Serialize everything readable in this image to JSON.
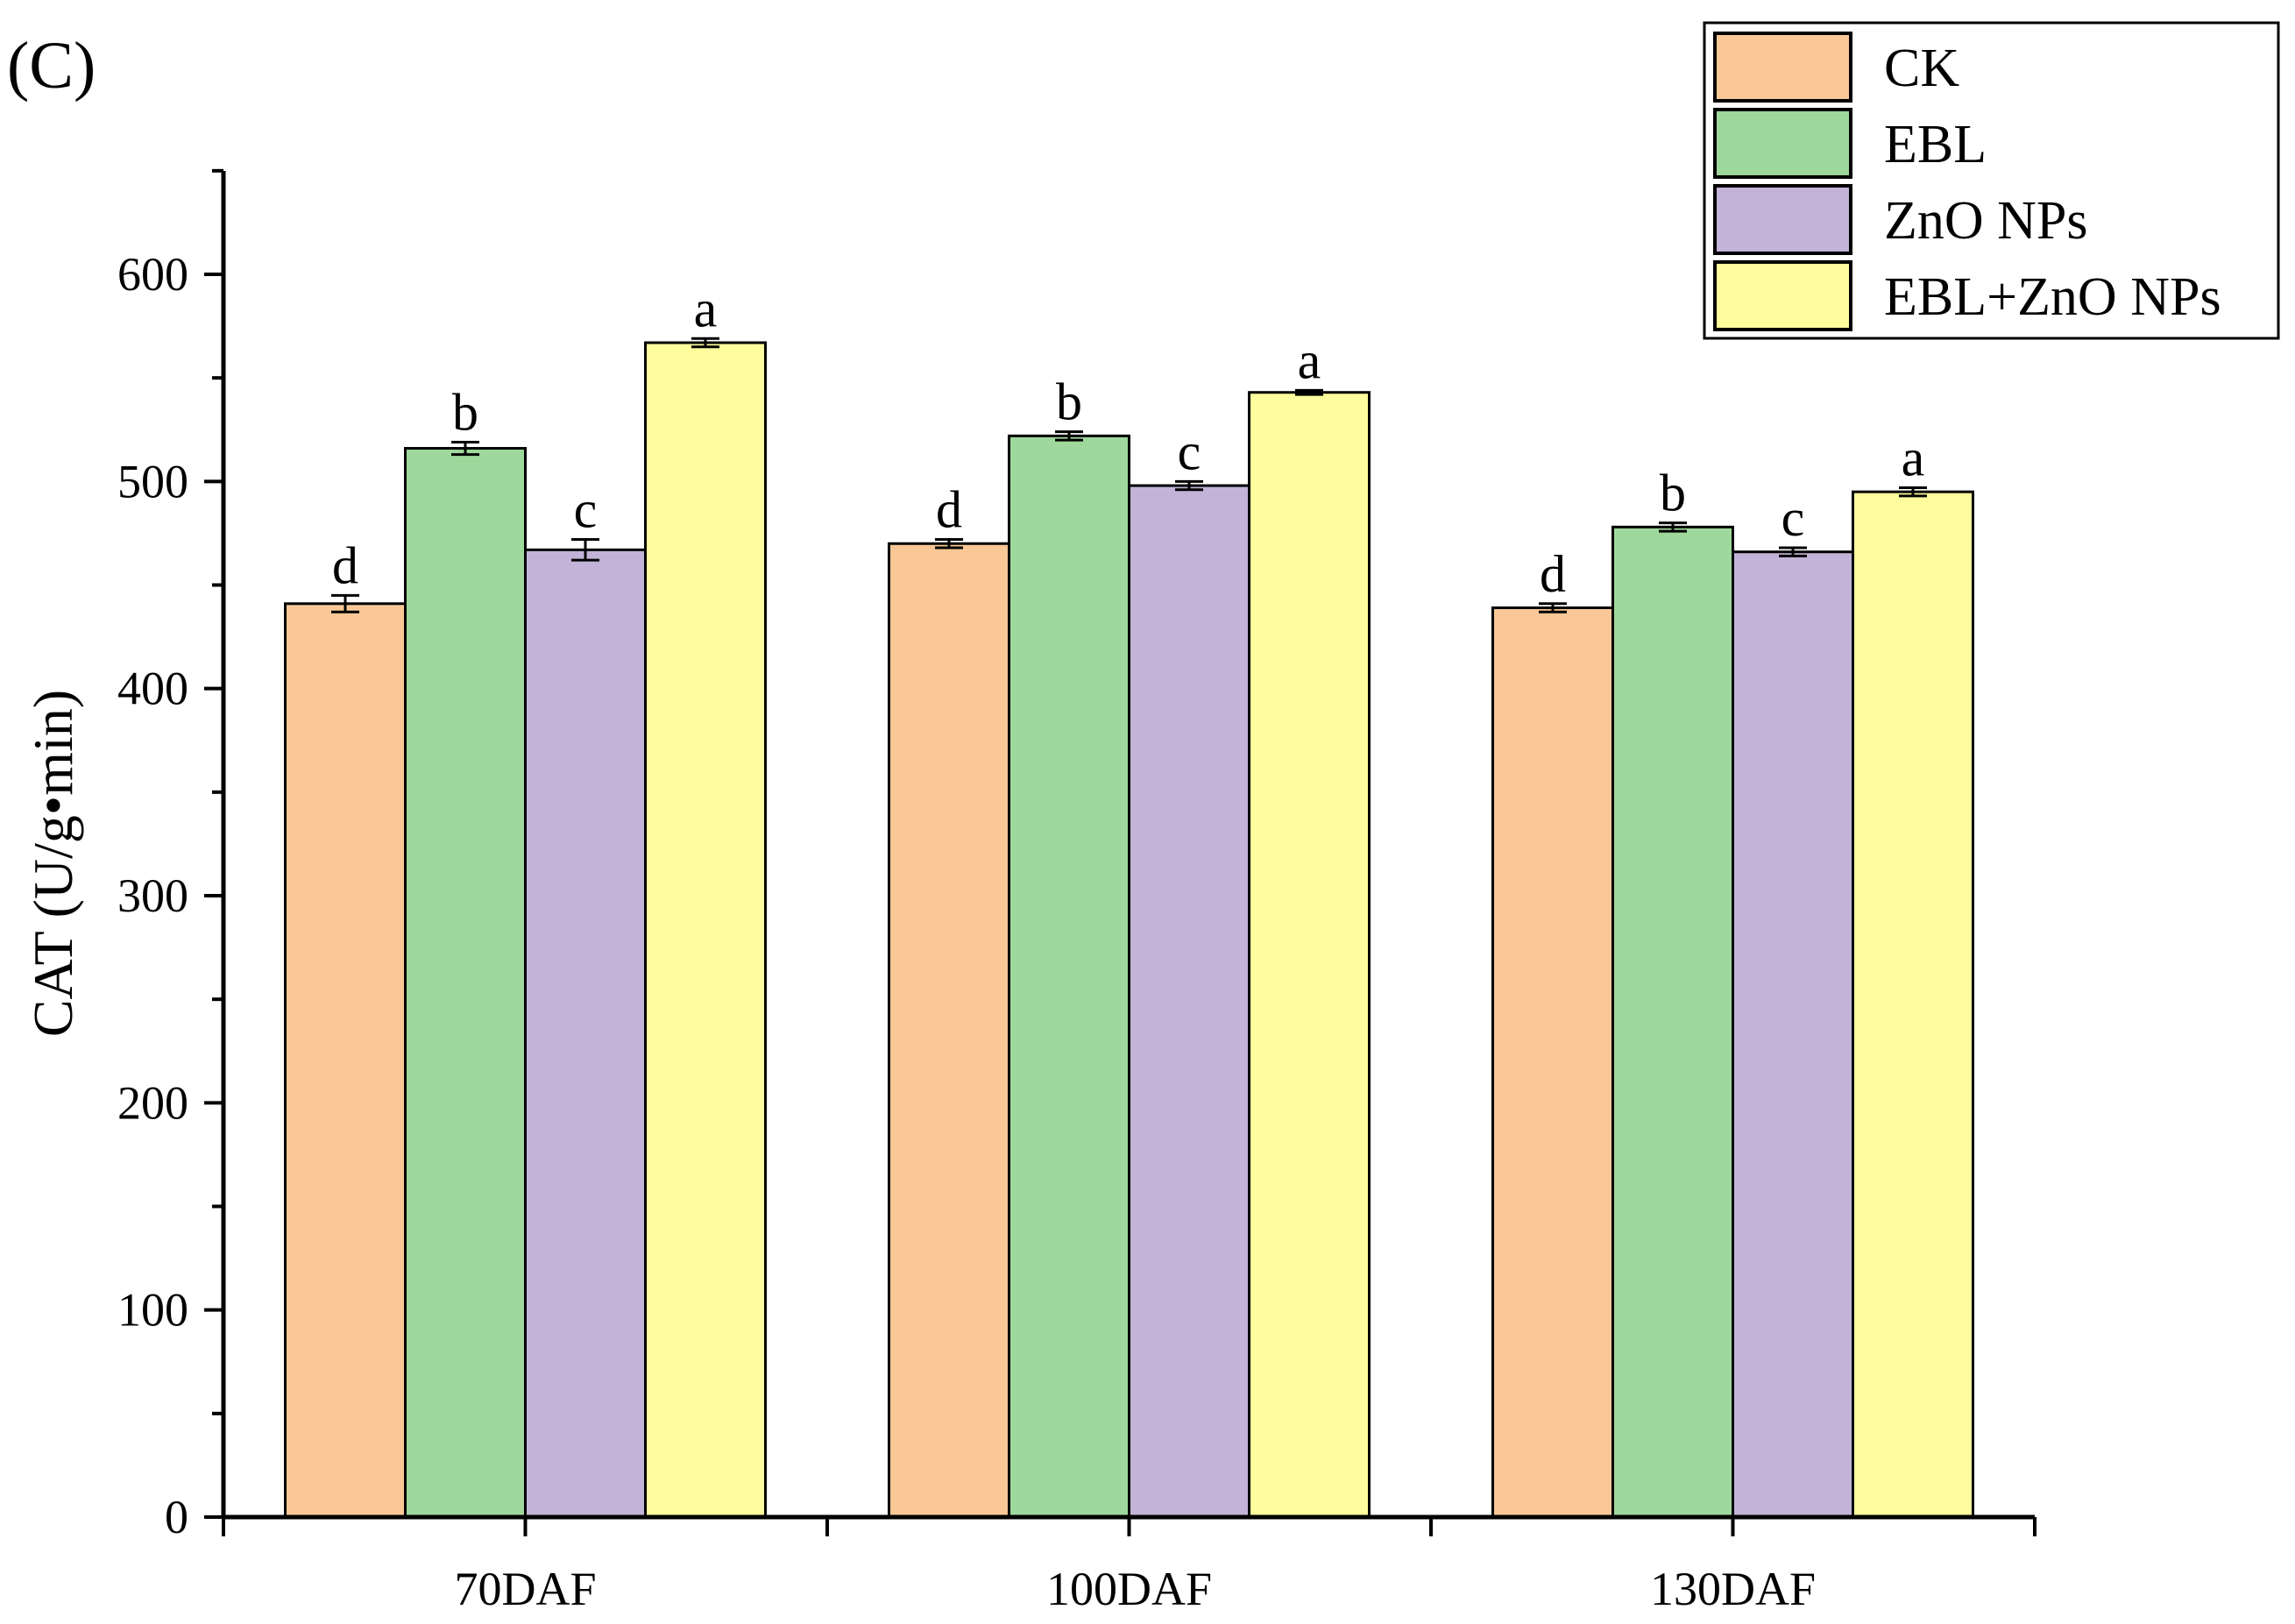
{
  "panel_label": "(C)",
  "chart_data": {
    "type": "bar",
    "title": "",
    "xlabel": "",
    "ylabel": "CAT (U/g•min)",
    "ylim": [
      0,
      650
    ],
    "yticks": [
      0,
      100,
      200,
      300,
      400,
      500,
      600
    ],
    "categories": [
      "70DAF",
      "100DAF",
      "130DAF"
    ],
    "series": [
      {
        "name": "CK",
        "color": "#f9c896",
        "values": [
          441,
          470,
          439
        ],
        "errors": [
          4,
          2,
          2
        ],
        "letters": [
          "d",
          "d",
          "d"
        ]
      },
      {
        "name": "EBL",
        "color": "#9fd89c",
        "values": [
          516,
          522,
          478
        ],
        "errors": [
          3,
          2,
          2
        ],
        "letters": [
          "b",
          "b",
          "b"
        ]
      },
      {
        "name": "ZnO NPs",
        "color": "#c3b3d8",
        "values": [
          467,
          498,
          466
        ],
        "errors": [
          5,
          2,
          2
        ],
        "letters": [
          "c",
          "c",
          "c"
        ]
      },
      {
        "name": "EBL+ZnO NPs",
        "color": "#fdfd9d",
        "values": [
          567,
          543,
          495
        ],
        "errors": [
          2,
          1,
          2
        ],
        "letters": [
          "a",
          "a",
          "a"
        ]
      }
    ],
    "legend_position": "top-right"
  }
}
